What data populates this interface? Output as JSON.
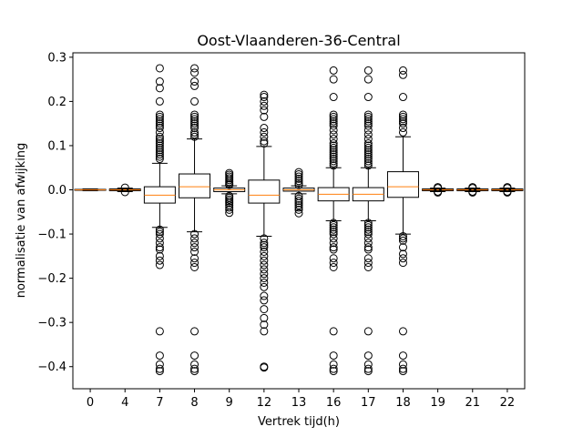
{
  "chart_data": {
    "type": "box",
    "title": "Oost-Vlaanderen-36-Central",
    "xlabel": "Vertrek tijd(h)",
    "ylabel": "normalisatie van afwijking",
    "ylim": [
      -0.45,
      0.31
    ],
    "yticks": [
      -0.4,
      -0.3,
      -0.2,
      -0.1,
      0.0,
      0.1,
      0.2,
      0.3
    ],
    "ytick_labels": [
      "−0.4",
      "−0.3",
      "−0.2",
      "−0.1",
      "0.0",
      "0.1",
      "0.2",
      "0.3"
    ],
    "categories": [
      "0",
      "4",
      "7",
      "8",
      "9",
      "12",
      "13",
      "16",
      "17",
      "18",
      "19",
      "21",
      "22"
    ],
    "boxes": [
      {
        "q1": -0.001,
        "median": 0.0,
        "q3": 0.001,
        "whislo": -0.002,
        "whishi": 0.002,
        "fliers": []
      },
      {
        "q1": -0.002,
        "median": 0.0,
        "q3": 0.002,
        "whislo": -0.004,
        "whishi": 0.004,
        "fliers": [
          -0.005,
          0.005
        ]
      },
      {
        "q1": -0.03,
        "median": -0.012,
        "q3": 0.007,
        "whislo": -0.085,
        "whishi": 0.06,
        "fliers": [
          0.275,
          0.245,
          0.23,
          0.2,
          0.17,
          0.165,
          0.16,
          0.155,
          0.15,
          0.145,
          0.14,
          0.13,
          0.12,
          0.115,
          0.11,
          0.105,
          0.1,
          0.095,
          0.09,
          0.085,
          0.08,
          0.075,
          0.07,
          -0.09,
          -0.095,
          -0.1,
          -0.11,
          -0.12,
          -0.13,
          -0.135,
          -0.15,
          -0.16,
          -0.17,
          -0.32,
          -0.375,
          -0.395,
          -0.405,
          -0.41
        ]
      },
      {
        "q1": -0.018,
        "median": 0.007,
        "q3": 0.036,
        "whislo": -0.095,
        "whishi": 0.115,
        "fliers": [
          0.275,
          0.265,
          0.245,
          0.235,
          0.2,
          0.17,
          0.165,
          0.16,
          0.155,
          0.15,
          0.145,
          0.14,
          0.13,
          0.125,
          0.12,
          -0.1,
          -0.11,
          -0.12,
          -0.13,
          -0.14,
          -0.155,
          -0.165,
          -0.175,
          -0.32,
          -0.375,
          -0.395,
          -0.405,
          -0.41
        ]
      },
      {
        "q1": -0.004,
        "median": 0.0,
        "q3": 0.004,
        "whislo": -0.009,
        "whishi": 0.009,
        "fliers": [
          0.038,
          0.034,
          0.03,
          0.026,
          0.022,
          0.018,
          0.014,
          0.011,
          -0.014,
          -0.018,
          -0.022,
          -0.026,
          -0.03,
          -0.035,
          -0.04,
          -0.045,
          -0.052
        ]
      },
      {
        "q1": -0.03,
        "median": -0.012,
        "q3": 0.022,
        "whislo": -0.105,
        "whishi": 0.098,
        "fliers": [
          0.215,
          0.21,
          0.2,
          0.19,
          0.18,
          0.165,
          0.14,
          0.13,
          0.12,
          0.11,
          0.105,
          -0.11,
          -0.12,
          -0.125,
          -0.13,
          -0.14,
          -0.15,
          -0.16,
          -0.17,
          -0.18,
          -0.19,
          -0.2,
          -0.21,
          -0.22,
          -0.24,
          -0.25,
          -0.27,
          -0.29,
          -0.305,
          -0.32,
          -0.4,
          -0.402
        ]
      },
      {
        "q1": -0.003,
        "median": 0.0,
        "q3": 0.004,
        "whislo": -0.009,
        "whishi": 0.009,
        "fliers": [
          0.04,
          0.035,
          0.03,
          0.025,
          0.02,
          0.015,
          0.011,
          -0.014,
          -0.02,
          -0.025,
          -0.03,
          -0.035,
          -0.04,
          -0.045,
          -0.053
        ]
      },
      {
        "q1": -0.025,
        "median": -0.01,
        "q3": 0.005,
        "whislo": -0.07,
        "whishi": 0.05,
        "fliers": [
          0.27,
          0.25,
          0.21,
          0.17,
          0.165,
          0.16,
          0.155,
          0.15,
          0.145,
          0.135,
          0.125,
          0.115,
          0.105,
          0.1,
          0.095,
          0.09,
          0.085,
          0.08,
          0.075,
          0.07,
          0.065,
          0.06,
          0.055,
          -0.075,
          -0.08,
          -0.085,
          -0.09,
          -0.095,
          -0.1,
          -0.11,
          -0.12,
          -0.13,
          -0.135,
          -0.155,
          -0.165,
          -0.175,
          -0.32,
          -0.375,
          -0.395,
          -0.405,
          -0.41
        ]
      },
      {
        "q1": -0.025,
        "median": -0.01,
        "q3": 0.005,
        "whislo": -0.07,
        "whishi": 0.05,
        "fliers": [
          0.27,
          0.25,
          0.21,
          0.17,
          0.165,
          0.16,
          0.155,
          0.15,
          0.145,
          0.135,
          0.125,
          0.115,
          0.105,
          0.1,
          0.095,
          0.09,
          0.085,
          0.08,
          0.075,
          0.07,
          0.065,
          0.06,
          0.055,
          -0.075,
          -0.08,
          -0.085,
          -0.09,
          -0.095,
          -0.1,
          -0.11,
          -0.12,
          -0.13,
          -0.135,
          -0.155,
          -0.165,
          -0.175,
          -0.32,
          -0.375,
          -0.395,
          -0.405,
          -0.41
        ]
      },
      {
        "q1": -0.017,
        "median": 0.007,
        "q3": 0.041,
        "whislo": -0.1,
        "whishi": 0.12,
        "fliers": [
          0.27,
          0.26,
          0.21,
          0.17,
          0.165,
          0.16,
          0.155,
          0.15,
          0.14,
          0.13,
          -0.105,
          -0.11,
          -0.115,
          -0.13,
          -0.145,
          -0.155,
          -0.165,
          -0.32,
          -0.375,
          -0.395,
          -0.405,
          -0.41
        ]
      },
      {
        "q1": -0.002,
        "median": 0.0,
        "q3": 0.002,
        "whislo": -0.004,
        "whishi": 0.004,
        "fliers": [
          0.006,
          0.004,
          -0.004,
          -0.006
        ]
      },
      {
        "q1": -0.002,
        "median": 0.0,
        "q3": 0.002,
        "whislo": -0.004,
        "whishi": 0.004,
        "fliers": [
          0.006,
          0.004,
          -0.004,
          -0.006
        ]
      },
      {
        "q1": -0.002,
        "median": 0.0,
        "q3": 0.002,
        "whislo": -0.004,
        "whishi": 0.004,
        "fliers": [
          0.006,
          0.004,
          -0.004,
          -0.006
        ]
      }
    ],
    "colors": {
      "median": "#ff7f0e",
      "box": "#000000",
      "axes": "#000000",
      "background": "#ffffff"
    },
    "grid": false,
    "legend": "none"
  }
}
